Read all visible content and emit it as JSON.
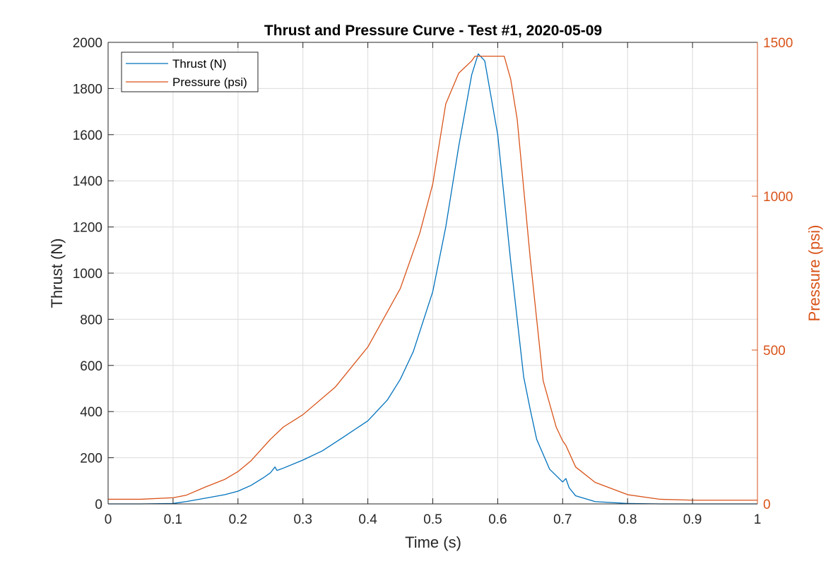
{
  "chart_data": {
    "type": "line",
    "title": "Thrust and Pressure Curve - Test #1, 2020-05-09",
    "xlabel": "Time (s)",
    "ylabel_left": "Thrust (N)",
    "ylabel_right": "Pressure (psi)",
    "xlim": [
      0,
      1
    ],
    "ylim_left": [
      0,
      2000
    ],
    "ylim_right": [
      0,
      1500
    ],
    "x_ticks": [
      0,
      0.1,
      0.2,
      0.3,
      0.4,
      0.5,
      0.6,
      0.7,
      0.8,
      0.9,
      1
    ],
    "y_ticks_left": [
      0,
      200,
      400,
      600,
      800,
      1000,
      1200,
      1400,
      1600,
      1800,
      2000
    ],
    "y_ticks_right": [
      0,
      500,
      1000,
      1500
    ],
    "grid": true,
    "legend_position": "top-left",
    "colors": {
      "thrust": "#0072BD",
      "pressure": "#D95319",
      "axis": "#262626",
      "grid": "#dcdcdc"
    },
    "series": [
      {
        "name": "Thrust (N)",
        "axis": "left",
        "x": [
          0,
          0.05,
          0.1,
          0.12,
          0.15,
          0.18,
          0.2,
          0.22,
          0.24,
          0.25,
          0.257,
          0.26,
          0.27,
          0.3,
          0.33,
          0.36,
          0.4,
          0.43,
          0.45,
          0.47,
          0.5,
          0.52,
          0.54,
          0.56,
          0.57,
          0.58,
          0.6,
          0.62,
          0.64,
          0.65,
          0.66,
          0.68,
          0.7,
          0.705,
          0.71,
          0.72,
          0.75,
          0.8,
          0.85,
          0.9,
          1
        ],
        "y": [
          0,
          0,
          2,
          10,
          25,
          40,
          55,
          80,
          115,
          135,
          160,
          145,
          155,
          190,
          230,
          285,
          360,
          450,
          540,
          660,
          920,
          1200,
          1550,
          1860,
          1950,
          1920,
          1600,
          1050,
          550,
          410,
          280,
          150,
          95,
          110,
          70,
          35,
          10,
          2,
          0,
          0,
          0
        ]
      },
      {
        "name": "Pressure (psi)",
        "axis": "right",
        "x": [
          0,
          0.05,
          0.1,
          0.12,
          0.15,
          0.18,
          0.2,
          0.22,
          0.25,
          0.27,
          0.3,
          0.35,
          0.4,
          0.45,
          0.48,
          0.5,
          0.52,
          0.54,
          0.56,
          0.565,
          0.6,
          0.61,
          0.62,
          0.63,
          0.65,
          0.67,
          0.69,
          0.7,
          0.705,
          0.72,
          0.75,
          0.8,
          0.85,
          0.9,
          0.95,
          1
        ],
        "y": [
          15,
          15,
          20,
          28,
          55,
          80,
          105,
          140,
          210,
          250,
          290,
          380,
          510,
          700,
          880,
          1040,
          1300,
          1400,
          1440,
          1455,
          1455,
          1455,
          1380,
          1250,
          800,
          400,
          250,
          205,
          190,
          120,
          70,
          30,
          15,
          12,
          12,
          12
        ]
      }
    ]
  }
}
